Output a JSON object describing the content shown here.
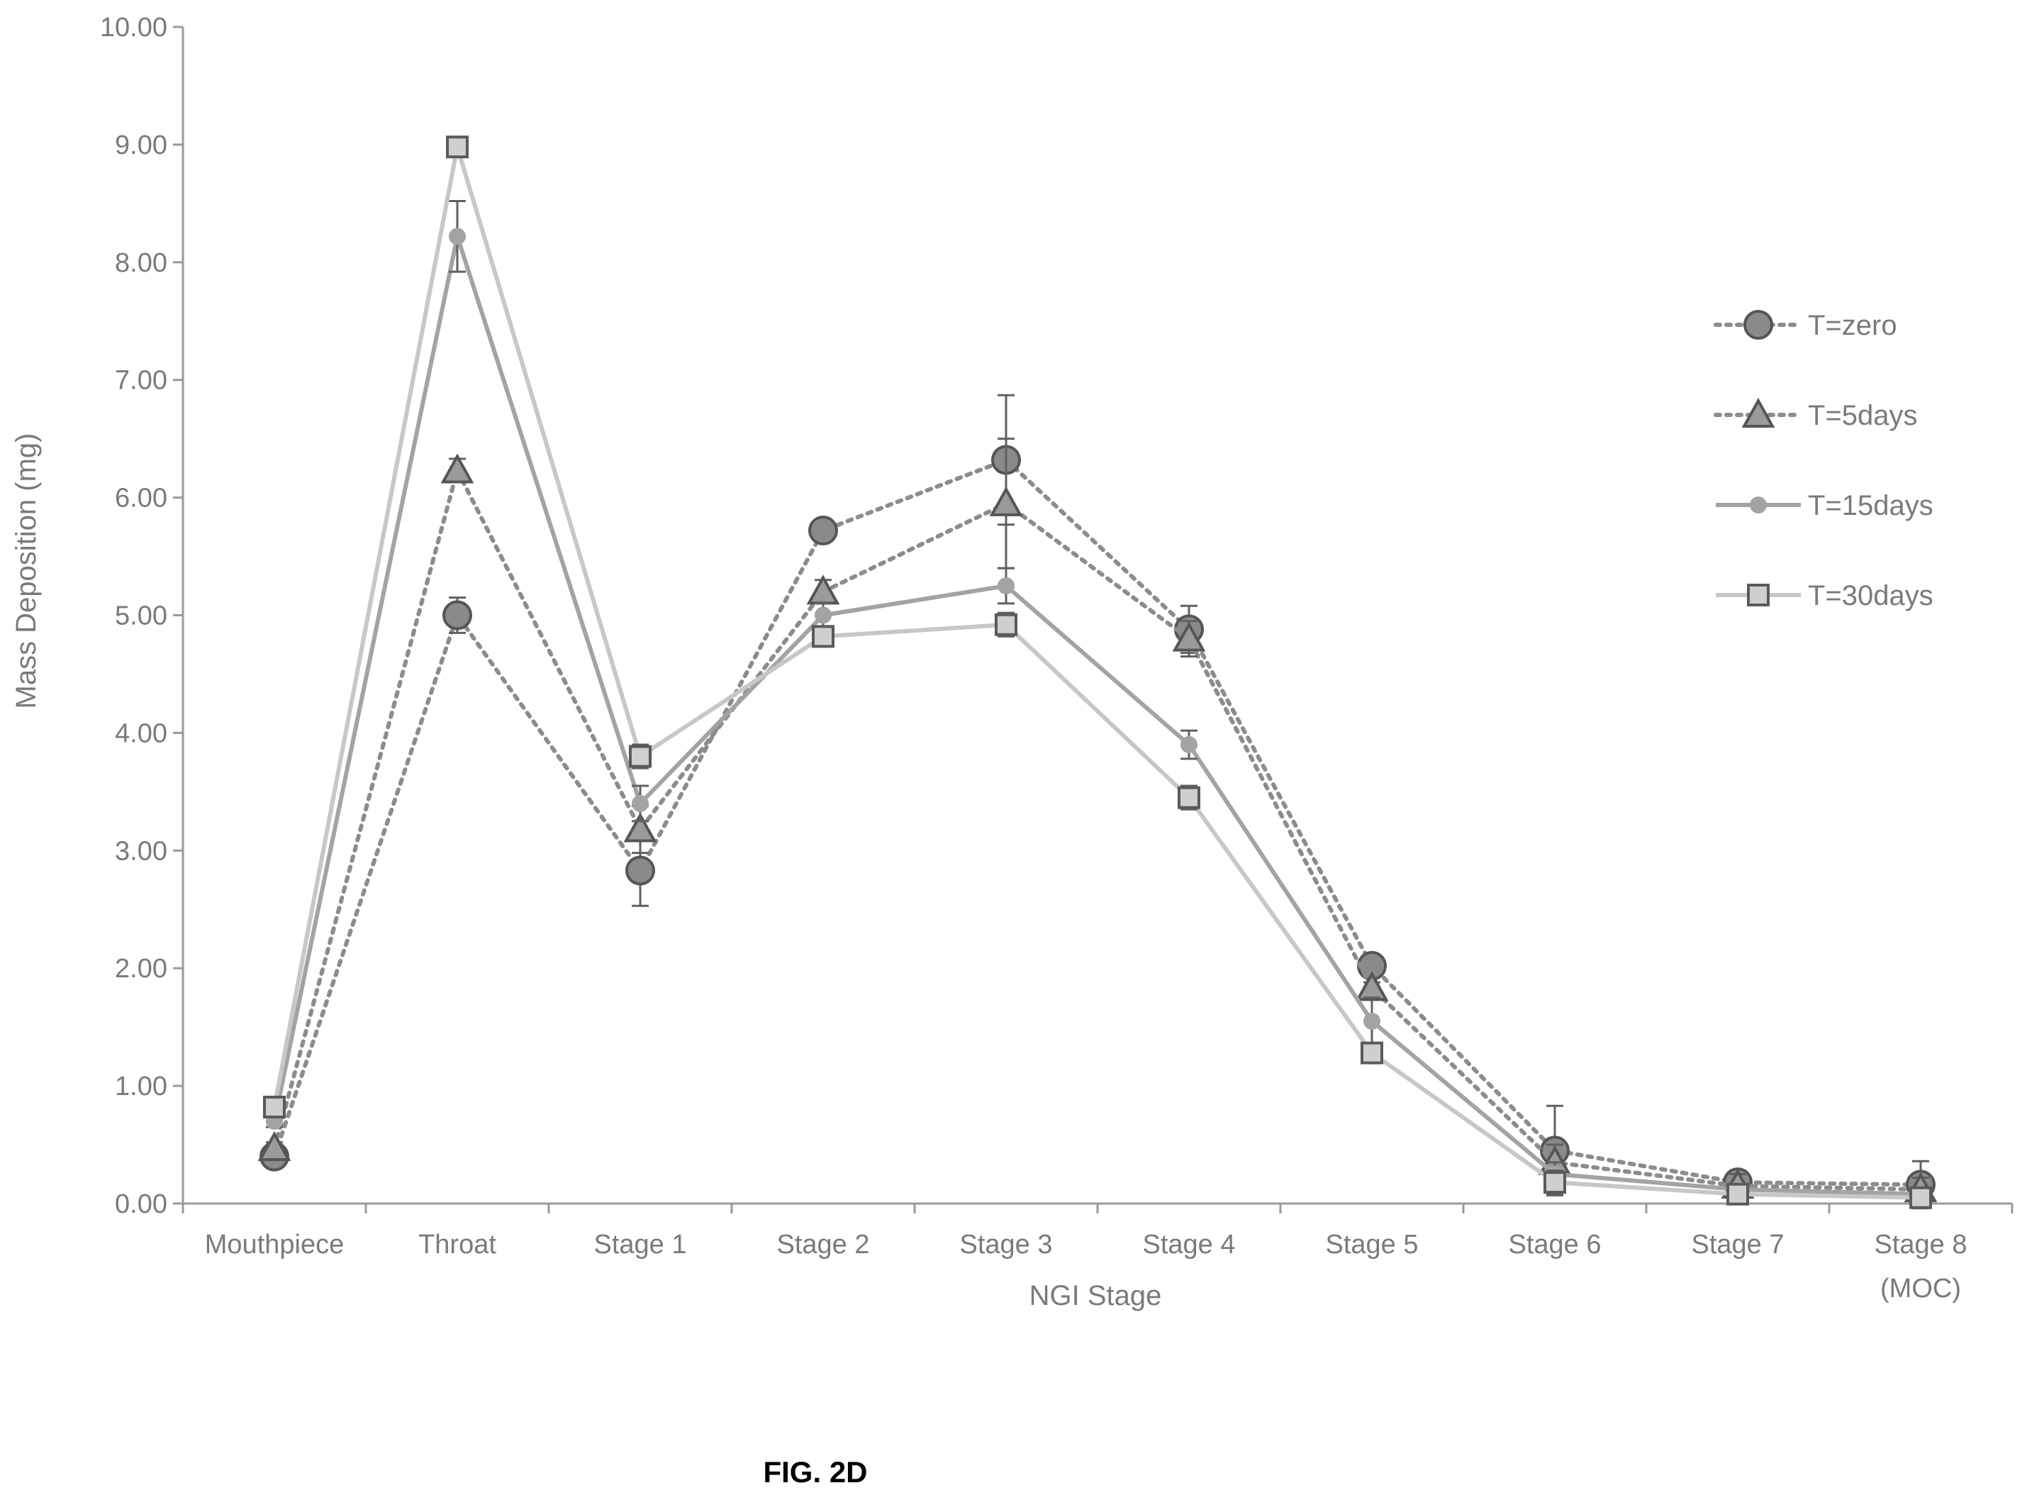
{
  "chart_data": {
    "type": "line",
    "xlabel": "NGI Stage",
    "ylabel": "Mass Deposition (mg)",
    "categories": [
      "Mouthpiece",
      "Throat",
      "Stage 1",
      "Stage 2",
      "Stage 3",
      "Stage 4",
      "Stage 5",
      "Stage 6",
      "Stage 7",
      "Stage 8 (MOC)"
    ],
    "category_lines": [
      [
        "Mouthpiece"
      ],
      [
        "Throat"
      ],
      [
        "Stage 1"
      ],
      [
        "Stage 2"
      ],
      [
        "Stage 3"
      ],
      [
        "Stage 4"
      ],
      [
        "Stage 5"
      ],
      [
        "Stage 6"
      ],
      [
        "Stage 7"
      ],
      [
        "Stage 8",
        "(MOC)"
      ]
    ],
    "ylim": [
      0,
      10
    ],
    "yticks": [
      "0.00",
      "1.00",
      "2.00",
      "3.00",
      "4.00",
      "5.00",
      "6.00",
      "7.00",
      "8.00",
      "9.00",
      "10.00"
    ],
    "grid": false,
    "legend_position": "right",
    "series": [
      {
        "name": "T=zero",
        "marker": "circle",
        "line": "dotted",
        "color": "#8c8c8c",
        "values": [
          0.4,
          5.0,
          2.83,
          5.72,
          6.32,
          4.88,
          2.02,
          0.45,
          0.18,
          0.16
        ],
        "errors": [
          0.05,
          0.15,
          0.3,
          0.05,
          0.55,
          0.2,
          0.05,
          0.38,
          0.1,
          0.2
        ]
      },
      {
        "name": "T=5days",
        "marker": "triangle",
        "line": "dotted",
        "color": "#8c8c8c",
        "values": [
          0.47,
          6.23,
          3.18,
          5.2,
          5.95,
          4.8,
          1.83,
          0.35,
          0.15,
          0.12
        ],
        "errors": [
          0.05,
          0.1,
          0.2,
          0.1,
          0.55,
          0.15,
          0.05,
          0.15,
          0.1,
          0.1
        ]
      },
      {
        "name": "T=15days",
        "marker": "dot",
        "line": "solid",
        "color": "#a3a3a3",
        "values": [
          0.7,
          8.22,
          3.4,
          5.0,
          5.25,
          3.9,
          1.55,
          0.25,
          0.12,
          0.08
        ],
        "errors": [
          0.05,
          0.3,
          0.15,
          0.1,
          0.15,
          0.12,
          0.2,
          0.1,
          0.05,
          0.05
        ]
      },
      {
        "name": "T=30days",
        "marker": "square",
        "line": "solid",
        "color": "#c7c7c7",
        "values": [
          0.82,
          8.98,
          3.8,
          4.82,
          4.92,
          3.45,
          1.28,
          0.18,
          0.08,
          0.05
        ],
        "errors": [
          0.05,
          0.05,
          0.1,
          0.05,
          0.1,
          0.1,
          0.05,
          0.1,
          0.05,
          0.05
        ]
      }
    ]
  },
  "caption": "FIG. 2D"
}
